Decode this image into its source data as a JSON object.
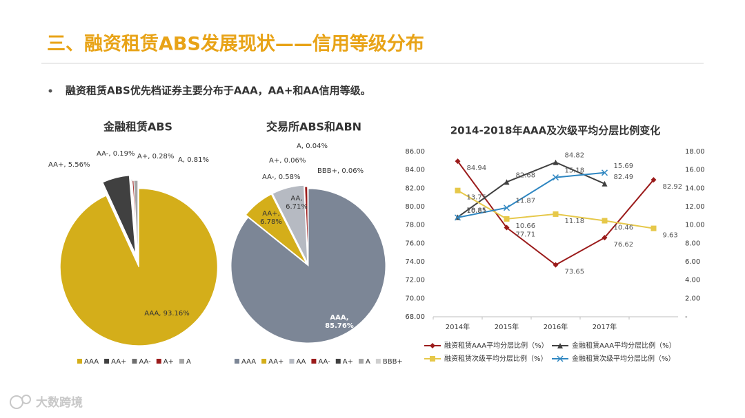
{
  "title": "三、融资租赁ABS发展现状——信用等级分布",
  "bullet": "融资租赁ABS优先档证券主要分布于AAA，AA+和AA信用等级。",
  "watermark": "大数跨境",
  "chart_data": [
    {
      "type": "pie",
      "title": "金融租赁ABS",
      "categories": [
        "AAA",
        "AA+",
        "AA-",
        "A+",
        "A"
      ],
      "values": [
        93.16,
        5.56,
        0.19,
        0.28,
        0.81
      ],
      "value_labels": [
        "AAA, 93.16%",
        "AA+, 5.56%",
        "AA-, 0.19%",
        "A+, 0.28%",
        "A, 0.81%"
      ],
      "colors": [
        "#d4ae1a",
        "#404040",
        "#6f6f6f",
        "#9b1b1b",
        "#a6a6a6"
      ]
    },
    {
      "type": "pie",
      "title": "交易所ABS和ABN",
      "categories": [
        "AAA",
        "AA+",
        "AA",
        "AA-",
        "A+",
        "A",
        "BBB+"
      ],
      "values": [
        85.76,
        6.78,
        6.71,
        0.58,
        0.06,
        0.04,
        0.06
      ],
      "value_labels": [
        "AAA, 85.76%",
        "AA+, 6.78%",
        "AA, 6.71%",
        "AA-, 0.58%",
        "A+, 0.06%",
        "A, 0.04%",
        "BBB+, 0.06%"
      ],
      "colors": [
        "#7c8696",
        "#d4ae1a",
        "#b6bac2",
        "#9b1b1b",
        "#404040",
        "#a6a6a6",
        "#cfcfcf"
      ]
    },
    {
      "type": "line",
      "title": "2014-2018年AAA及次级平均分层比例变化",
      "categories": [
        "2014年",
        "2015年",
        "2016年",
        "2017年",
        null
      ],
      "ylim": [
        68,
        86
      ],
      "yticks": [
        {
          "value": 68,
          "label": "68.00"
        },
        {
          "value": 70,
          "label": "70.00"
        },
        {
          "value": 72,
          "label": "72.00"
        },
        {
          "value": 74,
          "label": "74.00"
        },
        {
          "value": 76,
          "label": "76.00"
        },
        {
          "value": 78,
          "label": "78.00"
        },
        {
          "value": 80,
          "label": "80.00"
        },
        {
          "value": 82,
          "label": "82.00"
        },
        {
          "value": 84,
          "label": "84.00"
        },
        {
          "value": 86,
          "label": "86.00"
        }
      ],
      "y2lim": [
        0,
        18
      ],
      "y2ticks": [
        {
          "value": 0,
          "label": "-"
        },
        {
          "value": 2,
          "label": "2.00"
        },
        {
          "value": 4,
          "label": "4.00"
        },
        {
          "value": 6,
          "label": "6.00"
        },
        {
          "value": 8,
          "label": "8.00"
        },
        {
          "value": 10,
          "label": "10.00"
        },
        {
          "value": 12,
          "label": "12.00"
        },
        {
          "value": 14,
          "label": "14.00"
        },
        {
          "value": 16,
          "label": "16.00"
        },
        {
          "value": 18,
          "label": "18.00"
        }
      ],
      "series": [
        {
          "name": "融资租赁AAA平均分层比例（%）",
          "color": "#9b1b1b",
          "marker": "diamond",
          "values": [
            84.94,
            77.71,
            73.65,
            76.62,
            82.92
          ]
        },
        {
          "name": "金融租赁AAA平均分层比例（%）",
          "color": "#404040",
          "marker": "triangle",
          "values": [
            78.85,
            82.68,
            84.82,
            82.49,
            null
          ]
        },
        {
          "name": "融资租赁次级平均分层比例（%）",
          "color": "#e6c84a",
          "marker": "square",
          "axis": "y2",
          "values": [
            13.75,
            10.66,
            11.18,
            10.46,
            9.63
          ]
        },
        {
          "name": "金融租赁次级平均分层比例（%）",
          "color": "#2e86c1",
          "marker": "x",
          "axis": "y2",
          "values": [
            10.81,
            11.87,
            15.18,
            15.69,
            null
          ]
        }
      ]
    }
  ]
}
